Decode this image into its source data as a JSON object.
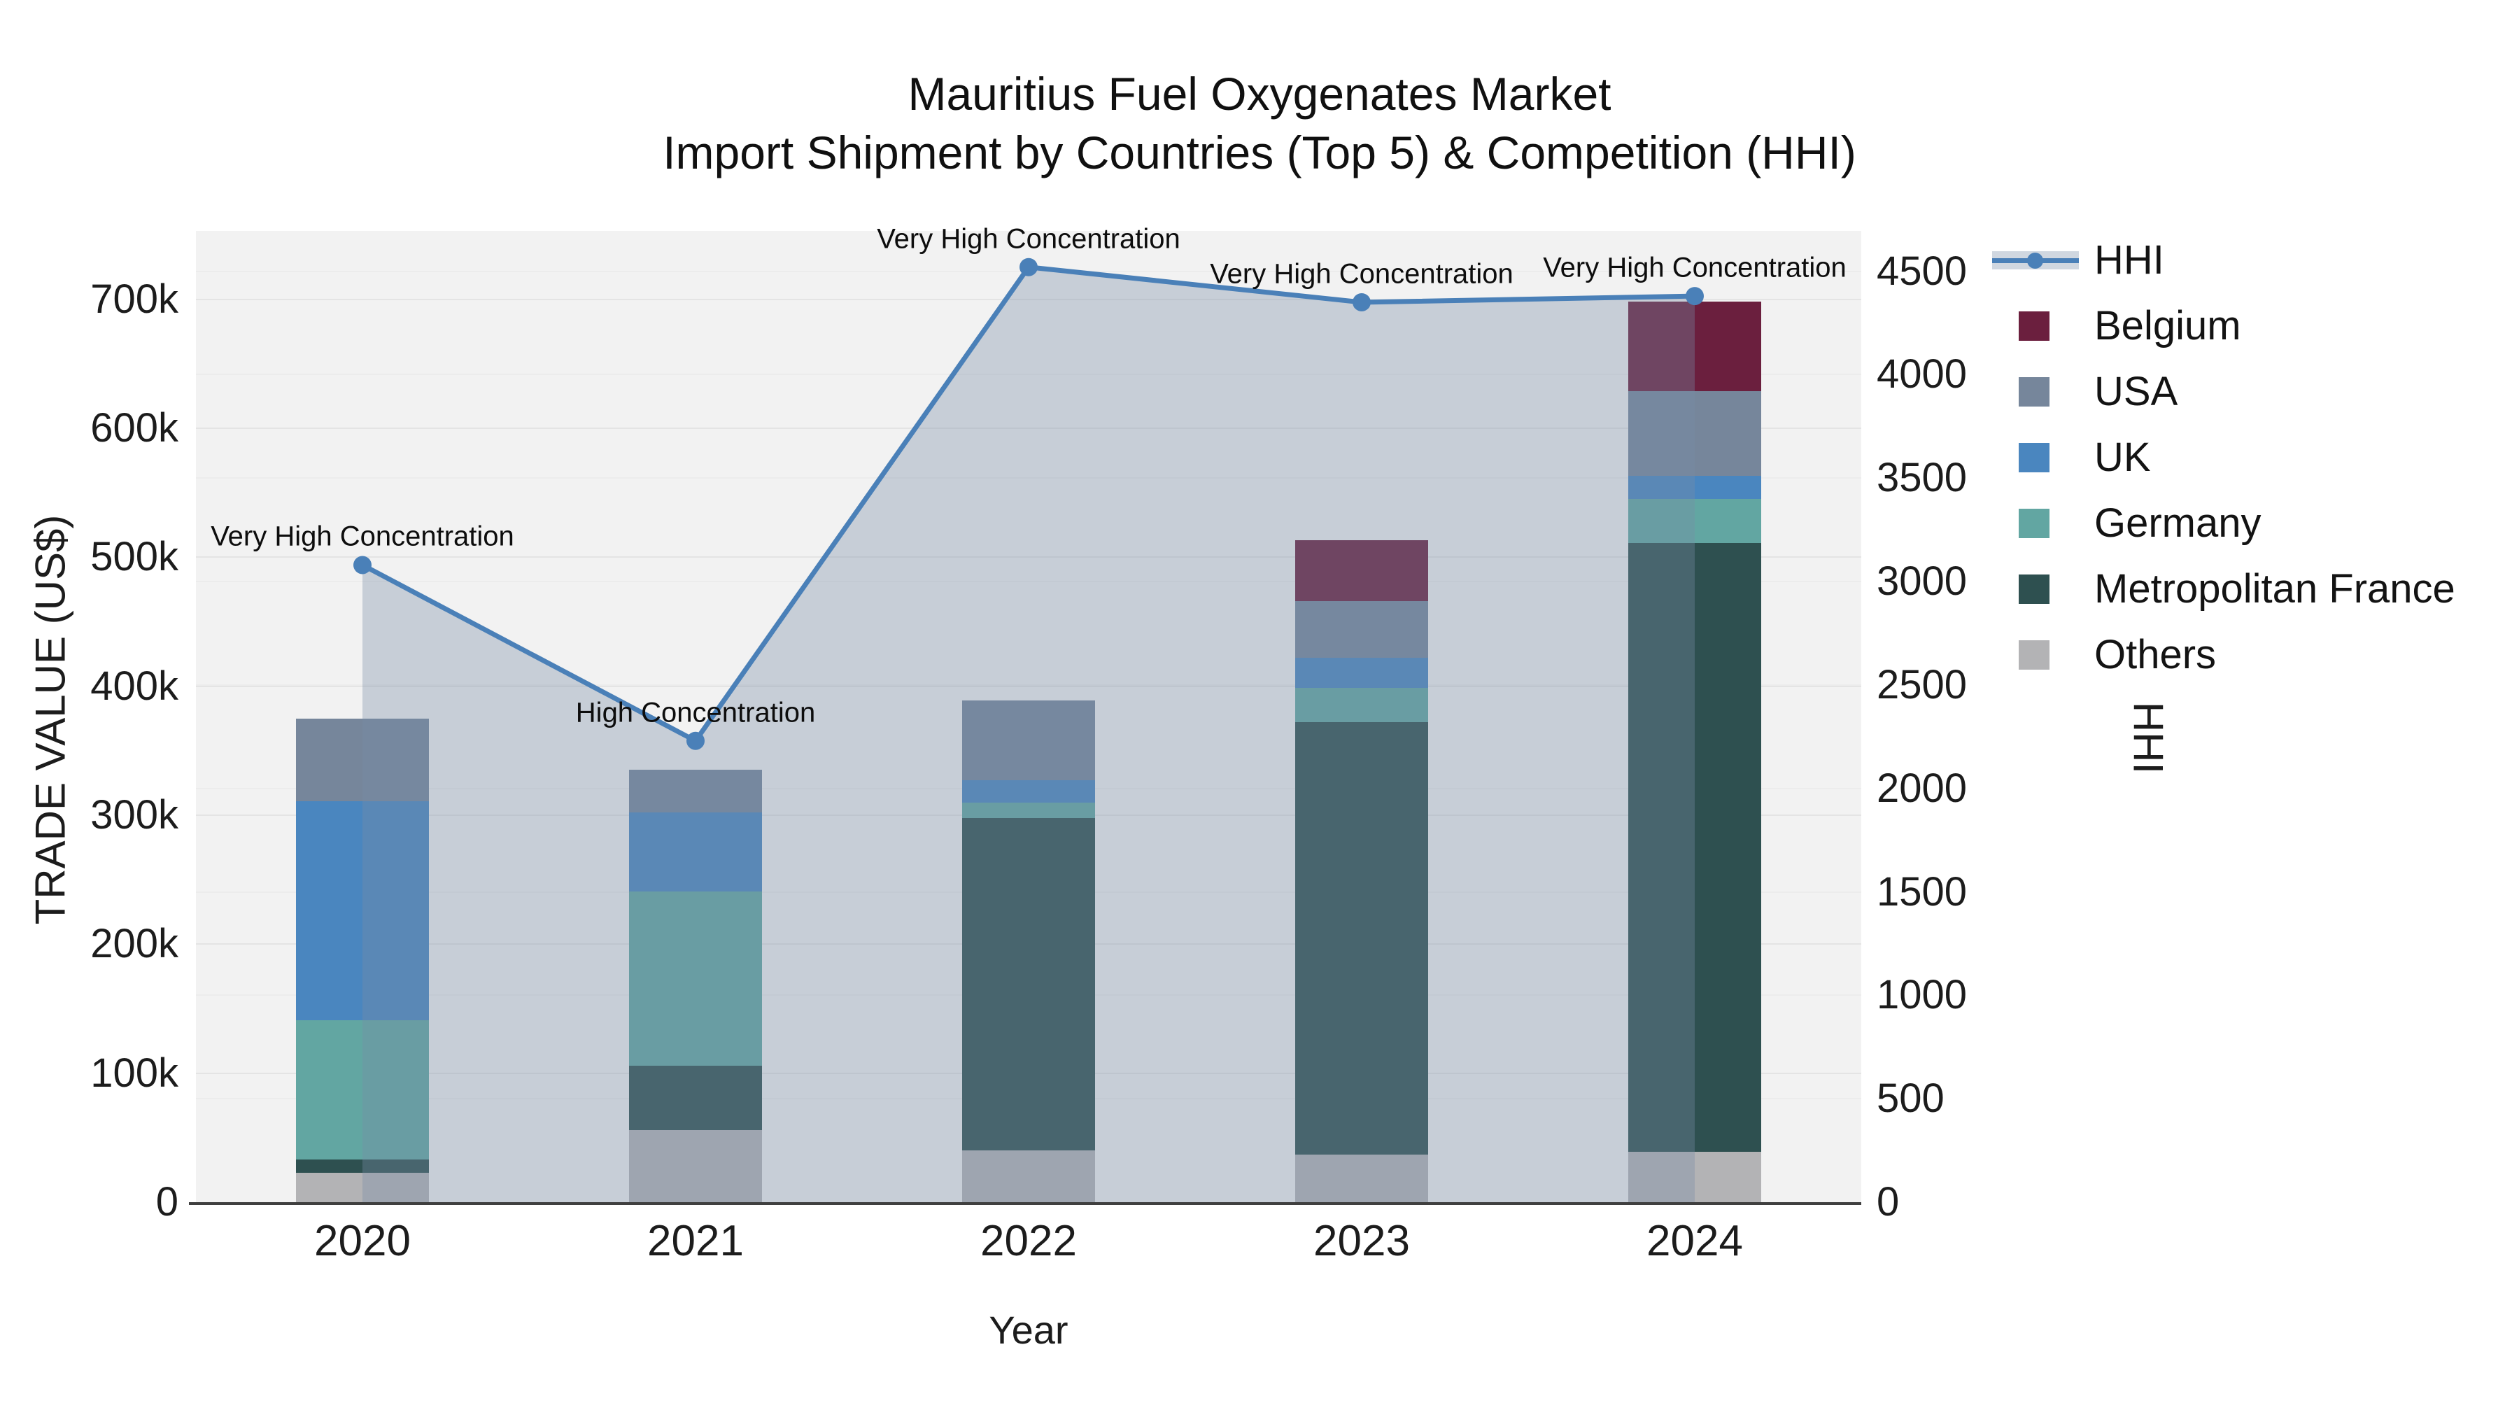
{
  "title": {
    "line1": "Mauritius Fuel Oxygenates Market",
    "line2": "Import Shipment by Countries (Top 5) & Competition (HHI)"
  },
  "axes": {
    "left": {
      "title": "TRADE VALUE (US$)",
      "ticks": [
        {
          "label": "0",
          "value": 0
        },
        {
          "label": "100k",
          "value": 100000
        },
        {
          "label": "200k",
          "value": 200000
        },
        {
          "label": "300k",
          "value": 300000
        },
        {
          "label": "400k",
          "value": 400000
        },
        {
          "label": "500k",
          "value": 500000
        },
        {
          "label": "600k",
          "value": 600000
        },
        {
          "label": "700k",
          "value": 700000
        }
      ]
    },
    "right": {
      "title": "HHI",
      "ticks": [
        {
          "label": "0",
          "value": 0
        },
        {
          "label": "500",
          "value": 500
        },
        {
          "label": "1000",
          "value": 1000
        },
        {
          "label": "1500",
          "value": 1500
        },
        {
          "label": "2000",
          "value": 2000
        },
        {
          "label": "2500",
          "value": 2500
        },
        {
          "label": "3000",
          "value": 3000
        },
        {
          "label": "3500",
          "value": 3500
        },
        {
          "label": "4000",
          "value": 4000
        },
        {
          "label": "4500",
          "value": 4500
        }
      ]
    },
    "x": {
      "title": "Year"
    }
  },
  "legend": [
    {
      "label": "HHI",
      "type": "line",
      "color": "#4a80b8"
    },
    {
      "label": "Belgium",
      "type": "square",
      "color": "#6b1f3e"
    },
    {
      "label": "USA",
      "type": "square",
      "color": "#76869b"
    },
    {
      "label": "UK",
      "type": "square",
      "color": "#4a86bf"
    },
    {
      "label": "Germany",
      "type": "square",
      "color": "#62a6a2"
    },
    {
      "label": "Metropolitan France",
      "type": "square",
      "color": "#2e5050"
    },
    {
      "label": "Others",
      "type": "square",
      "color": "#b3b3b5"
    }
  ],
  "chart_data": {
    "type": "bar",
    "subtype": "stacked-bar-with-line",
    "title": "Mauritius Fuel Oxygenates Market — Import Shipment by Countries (Top 5) & Competition (HHI)",
    "xlabel": "Year",
    "ylabel_left": "TRADE VALUE (US$)",
    "ylabel_right": "HHI",
    "categories": [
      "2020",
      "2021",
      "2022",
      "2023",
      "2024"
    ],
    "stack_order_bottom_to_top": [
      "Others",
      "Metropolitan France",
      "Germany",
      "UK",
      "USA",
      "Belgium"
    ],
    "series": [
      {
        "name": "Others",
        "color": "#b3b3b5",
        "values": [
          23000,
          56000,
          40000,
          37000,
          39000
        ]
      },
      {
        "name": "Metropolitan France",
        "color": "#2e5050",
        "values": [
          10000,
          50000,
          258000,
          335000,
          472000
        ]
      },
      {
        "name": "Germany",
        "color": "#62a6a2",
        "values": [
          108000,
          135000,
          12000,
          27000,
          34000
        ]
      },
      {
        "name": "UK",
        "color": "#4a86bf",
        "values": [
          170000,
          61000,
          17000,
          23000,
          18000
        ]
      },
      {
        "name": "USA",
        "color": "#76869b",
        "values": [
          64000,
          33000,
          62000,
          44000,
          66000
        ]
      },
      {
        "name": "Belgium",
        "color": "#6b1f3e",
        "values": [
          0,
          0,
          0,
          47000,
          69000
        ]
      }
    ],
    "bar_totals": [
      375000,
      335000,
      389000,
      513000,
      698000
    ],
    "line_series": {
      "name": "HHI",
      "axis": "right",
      "color": "#4a80b8",
      "area_fill": "rgba(120,140,165,0.35)",
      "values": [
        3080,
        2230,
        4520,
        4350,
        4380
      ]
    },
    "annotations": [
      "Very High Concentration",
      "High Concentration",
      "Very High Concentration",
      "Very High Concentration",
      "Very High Concentration"
    ],
    "ylim_left": [
      0,
      753000
    ],
    "ylim_right": [
      0,
      4695
    ],
    "grid": true,
    "legend_position": "right",
    "plot_background": "#f2f2f2"
  }
}
